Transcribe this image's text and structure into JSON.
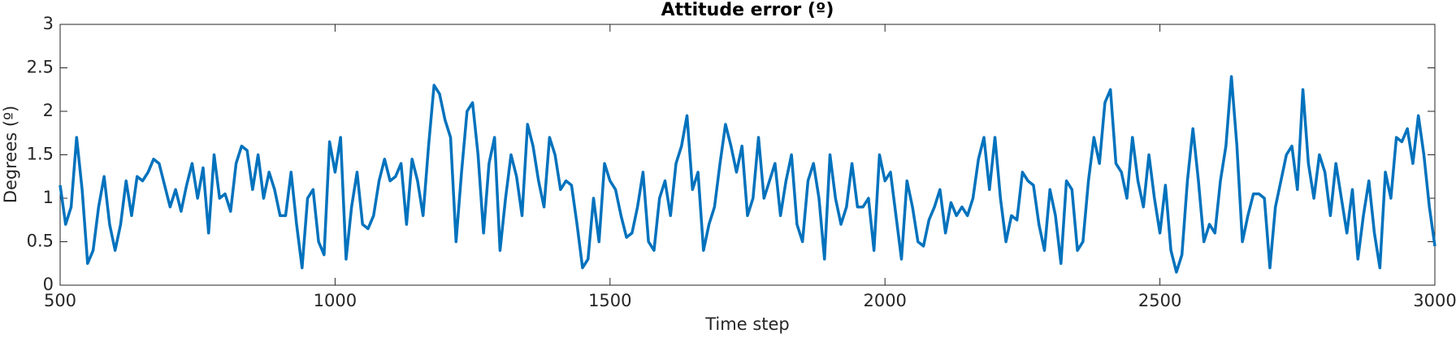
{
  "chart_data": {
    "type": "line",
    "title": "Attitude error (º)",
    "x_label": "Time step",
    "y_label": "Degrees (º)",
    "x": [
      500,
      510,
      520,
      530,
      540,
      550,
      560,
      570,
      580,
      590,
      600,
      610,
      620,
      630,
      640,
      650,
      660,
      670,
      680,
      690,
      700,
      710,
      720,
      730,
      740,
      750,
      760,
      770,
      780,
      790,
      800,
      810,
      820,
      830,
      840,
      850,
      860,
      870,
      880,
      890,
      900,
      910,
      920,
      930,
      940,
      950,
      960,
      970,
      980,
      990,
      1000,
      1010,
      1020,
      1030,
      1040,
      1050,
      1060,
      1070,
      1080,
      1090,
      1100,
      1110,
      1120,
      1130,
      1140,
      1150,
      1160,
      1170,
      1180,
      1190,
      1200,
      1210,
      1220,
      1230,
      1240,
      1250,
      1260,
      1270,
      1280,
      1290,
      1300,
      1310,
      1320,
      1330,
      1340,
      1350,
      1360,
      1370,
      1380,
      1390,
      1400,
      1410,
      1420,
      1430,
      1440,
      1450,
      1460,
      1470,
      1480,
      1490,
      1500,
      1510,
      1520,
      1530,
      1540,
      1550,
      1560,
      1570,
      1580,
      1590,
      1600,
      1610,
      1620,
      1630,
      1640,
      1650,
      1660,
      1670,
      1680,
      1690,
      1700,
      1710,
      1720,
      1730,
      1740,
      1750,
      1760,
      1770,
      1780,
      1790,
      1800,
      1810,
      1820,
      1830,
      1840,
      1850,
      1860,
      1870,
      1880,
      1890,
      1900,
      1910,
      1920,
      1930,
      1940,
      1950,
      1960,
      1970,
      1980,
      1990,
      2000,
      2010,
      2020,
      2030,
      2040,
      2050,
      2060,
      2070,
      2080,
      2090,
      2100,
      2110,
      2120,
      2130,
      2140,
      2150,
      2160,
      2170,
      2180,
      2190,
      2200,
      2210,
      2220,
      2230,
      2240,
      2250,
      2260,
      2270,
      2280,
      2290,
      2300,
      2310,
      2320,
      2330,
      2340,
      2350,
      2360,
      2370,
      2380,
      2390,
      2400,
      2410,
      2420,
      2430,
      2440,
      2450,
      2460,
      2470,
      2480,
      2490,
      2500,
      2510,
      2520,
      2530,
      2540,
      2550,
      2560,
      2570,
      2580,
      2590,
      2600,
      2610,
      2620,
      2630,
      2640,
      2650,
      2660,
      2670,
      2680,
      2690,
      2700,
      2710,
      2720,
      2730,
      2740,
      2750,
      2760,
      2770,
      2780,
      2790,
      2800,
      2810,
      2820,
      2830,
      2840,
      2850,
      2860,
      2870,
      2880,
      2890,
      2900,
      2910,
      2920,
      2930,
      2940,
      2950,
      2960,
      2970,
      2980,
      2990,
      3000
    ],
    "series": [
      {
        "color": "#0072bd",
        "values": [
          1.15,
          0.7,
          0.9,
          1.7,
          1.1,
          0.25,
          0.4,
          0.9,
          1.25,
          0.7,
          0.4,
          0.7,
          1.2,
          0.8,
          1.25,
          1.2,
          1.3,
          1.45,
          1.4,
          1.15,
          0.9,
          1.1,
          0.85,
          1.15,
          1.4,
          1.0,
          1.35,
          0.6,
          1.5,
          1.0,
          1.05,
          0.85,
          1.4,
          1.6,
          1.55,
          1.1,
          1.5,
          1.0,
          1.3,
          1.1,
          0.8,
          0.8,
          1.3,
          0.7,
          0.2,
          1.0,
          1.1,
          0.5,
          0.35,
          1.65,
          1.3,
          1.7,
          0.3,
          0.9,
          1.3,
          0.7,
          0.65,
          0.8,
          1.2,
          1.45,
          1.2,
          1.25,
          1.4,
          0.7,
          1.45,
          1.2,
          0.8,
          1.6,
          2.3,
          2.2,
          1.9,
          1.7,
          0.5,
          1.3,
          2.0,
          2.1,
          1.5,
          0.6,
          1.4,
          1.7,
          0.4,
          1.0,
          1.5,
          1.25,
          0.8,
          1.85,
          1.6,
          1.2,
          0.9,
          1.7,
          1.5,
          1.1,
          1.2,
          1.15,
          0.7,
          0.2,
          0.3,
          1.0,
          0.5,
          1.4,
          1.2,
          1.1,
          0.8,
          0.55,
          0.6,
          0.9,
          1.3,
          0.5,
          0.4,
          1.0,
          1.2,
          0.8,
          1.4,
          1.6,
          1.95,
          1.1,
          1.3,
          0.4,
          0.7,
          0.9,
          1.4,
          1.85,
          1.6,
          1.3,
          1.6,
          0.8,
          1.0,
          1.7,
          1.0,
          1.2,
          1.4,
          0.8,
          1.2,
          1.5,
          0.7,
          0.5,
          1.2,
          1.4,
          1.0,
          0.3,
          1.5,
          1.0,
          0.7,
          0.9,
          1.4,
          0.9,
          0.9,
          1.0,
          0.4,
          1.5,
          1.2,
          1.3,
          0.8,
          0.3,
          1.2,
          0.9,
          0.5,
          0.45,
          0.75,
          0.9,
          1.1,
          0.6,
          0.95,
          0.8,
          0.9,
          0.8,
          1.0,
          1.45,
          1.7,
          1.1,
          1.7,
          1.0,
          0.5,
          0.8,
          0.75,
          1.3,
          1.2,
          1.15,
          0.7,
          0.4,
          1.1,
          0.8,
          0.25,
          1.2,
          1.1,
          0.4,
          0.5,
          1.2,
          1.7,
          1.4,
          2.1,
          2.25,
          1.4,
          1.3,
          1.0,
          1.7,
          1.2,
          0.9,
          1.5,
          1.0,
          0.6,
          1.15,
          0.4,
          0.15,
          0.35,
          1.2,
          1.8,
          1.2,
          0.5,
          0.7,
          0.6,
          1.2,
          1.6,
          2.4,
          1.6,
          0.5,
          0.8,
          1.05,
          1.05,
          1.0,
          0.2,
          0.9,
          1.2,
          1.5,
          1.6,
          1.1,
          2.25,
          1.4,
          1.0,
          1.5,
          1.3,
          0.8,
          1.4,
          1.0,
          0.6,
          1.1,
          0.3,
          0.8,
          1.2,
          0.6,
          0.2,
          1.3,
          1.0,
          1.7,
          1.65,
          1.8,
          1.4,
          1.95,
          1.5,
          0.9,
          0.45
        ]
      }
    ],
    "xlim": [
      500,
      3000
    ],
    "xticks": [
      500,
      1000,
      1500,
      2000,
      2500,
      3000
    ],
    "ylim": [
      0,
      3
    ],
    "yticks": [
      0,
      0.5,
      1,
      1.5,
      2,
      2.5,
      3
    ]
  }
}
